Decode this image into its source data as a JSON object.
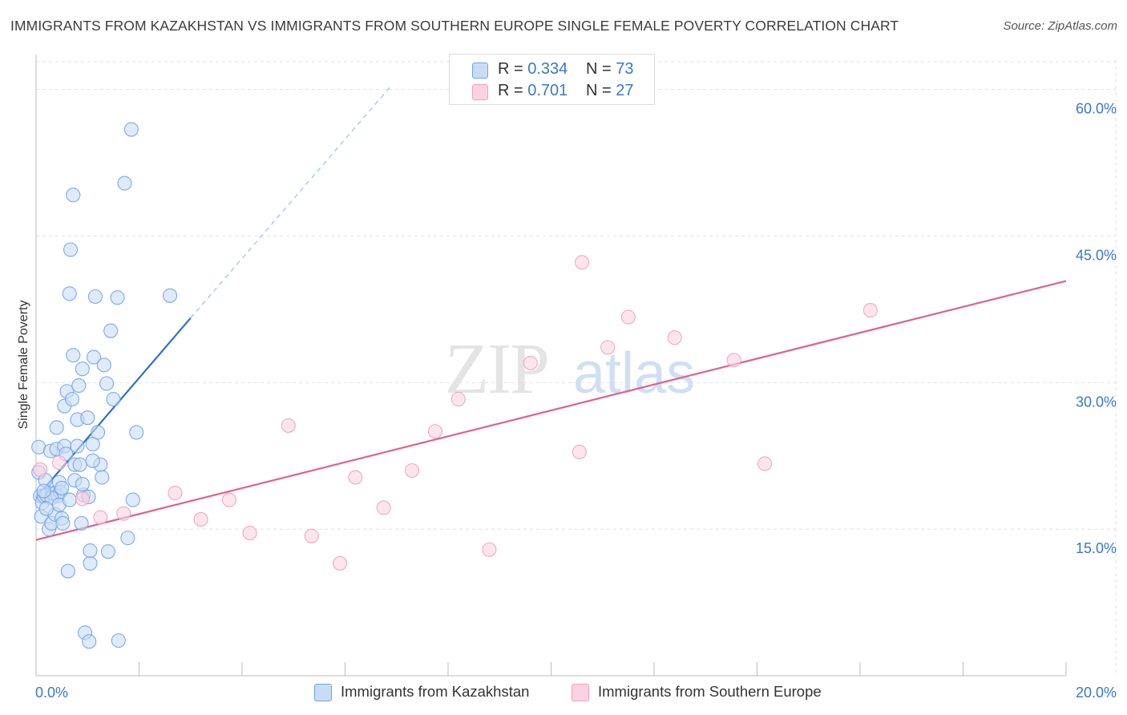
{
  "title": "IMMIGRANTS FROM KAZAKHSTAN VS IMMIGRANTS FROM SOUTHERN EUROPE SINGLE FEMALE POVERTY CORRELATION CHART",
  "source": "Source: ZipAtlas.com",
  "watermark": "ZIPatlas",
  "legend_top": [
    {
      "r_label": "R =",
      "r_value": "0.334",
      "n_label": "N =",
      "n_value": "73",
      "color": "#6fa3e6"
    },
    {
      "r_label": "R =",
      "r_value": "0.701",
      "n_label": "N =",
      "n_value": "27",
      "color": "#f0a0bc"
    }
  ],
  "legend_bottom": [
    {
      "label": "Immigrants from Kazakhstan",
      "color": "#6fa3e6"
    },
    {
      "label": "Immigrants from Southern Europe",
      "color": "#f0a0bc"
    }
  ],
  "chart_data": {
    "type": "scatter",
    "title": "IMMIGRANTS FROM KAZAKHSTAN VS IMMIGRANTS FROM SOUTHERN EUROPE SINGLE FEMALE POVERTY CORRELATION CHART",
    "xlabel": "",
    "ylabel": "Single Female Poverty",
    "xlim": [
      0,
      20
    ],
    "ylim": [
      0,
      63
    ],
    "x_tick_labels": [
      "0.0%",
      "20.0%"
    ],
    "y_ticks": [
      15,
      30,
      45,
      60
    ],
    "y_tick_labels": [
      "15.0%",
      "30.0%",
      "45.0%",
      "60.0%"
    ],
    "grid": true,
    "legend_placement": "top-center",
    "series": [
      {
        "name": "Immigrants from Kazakhstan",
        "color": "#6fa3e6",
        "line_color": "#2e6fd0",
        "trend": {
          "x0": 0.0,
          "y0": 18.2,
          "x1": 3.0,
          "y1": 36.6,
          "dash_to_x": 6.9,
          "dash_to_y": 60.4
        },
        "points": [
          [
            0.05,
            23.4
          ],
          [
            0.05,
            20.8
          ],
          [
            0.08,
            18.4
          ],
          [
            0.1,
            16.3
          ],
          [
            0.12,
            17.7
          ],
          [
            0.15,
            18.4
          ],
          [
            0.18,
            20.0
          ],
          [
            0.2,
            18.5
          ],
          [
            0.25,
            15.0
          ],
          [
            0.28,
            23.0
          ],
          [
            0.3,
            15.6
          ],
          [
            0.32,
            18.7
          ],
          [
            0.35,
            18.6
          ],
          [
            0.37,
            16.5
          ],
          [
            0.4,
            23.2
          ],
          [
            0.4,
            25.4
          ],
          [
            0.42,
            18.4
          ],
          [
            0.45,
            19.8
          ],
          [
            0.47,
            18.8
          ],
          [
            0.5,
            19.2
          ],
          [
            0.5,
            16.1
          ],
          [
            0.52,
            15.6
          ],
          [
            0.55,
            27.6
          ],
          [
            0.55,
            23.5
          ],
          [
            0.58,
            22.7
          ],
          [
            0.6,
            29.1
          ],
          [
            0.62,
            10.7
          ],
          [
            0.65,
            39.1
          ],
          [
            0.67,
            43.6
          ],
          [
            0.7,
            28.3
          ],
          [
            0.72,
            32.8
          ],
          [
            0.75,
            21.6
          ],
          [
            0.75,
            20.0
          ],
          [
            0.72,
            49.2
          ],
          [
            0.8,
            26.2
          ],
          [
            0.8,
            23.5
          ],
          [
            0.83,
            29.7
          ],
          [
            0.85,
            21.6
          ],
          [
            0.88,
            15.6
          ],
          [
            0.9,
            31.4
          ],
          [
            0.92,
            18.5
          ],
          [
            0.95,
            4.4
          ],
          [
            1.0,
            26.4
          ],
          [
            1.02,
            18.3
          ],
          [
            1.05,
            11.5
          ],
          [
            1.05,
            12.8
          ],
          [
            1.1,
            23.7
          ],
          [
            1.12,
            32.6
          ],
          [
            1.15,
            38.8
          ],
          [
            1.2,
            24.9
          ],
          [
            1.25,
            21.6
          ],
          [
            1.28,
            20.3
          ],
          [
            1.32,
            31.8
          ],
          [
            1.37,
            29.9
          ],
          [
            1.4,
            12.7
          ],
          [
            1.45,
            35.3
          ],
          [
            1.5,
            28.3
          ],
          [
            1.58,
            38.7
          ],
          [
            1.6,
            3.6
          ],
          [
            1.72,
            50.4
          ],
          [
            1.78,
            14.1
          ],
          [
            1.85,
            55.9
          ],
          [
            1.88,
            18.0
          ],
          [
            1.95,
            24.9
          ],
          [
            2.6,
            38.9
          ],
          [
            1.03,
            3.5
          ],
          [
            0.3,
            18.2
          ],
          [
            0.45,
            17.5
          ],
          [
            0.9,
            19.6
          ],
          [
            0.15,
            18.9
          ],
          [
            0.65,
            18.0
          ],
          [
            1.1,
            22.0
          ],
          [
            0.2,
            17.1
          ]
        ]
      },
      {
        "name": "Immigrants from Southern Europe",
        "color": "#f0a0bc",
        "line_color": "#e0608f",
        "trend": {
          "x0": 0.0,
          "y0": 13.9,
          "x1": 20.0,
          "y1": 40.4
        },
        "points": [
          [
            0.08,
            21.1
          ],
          [
            0.9,
            18.1
          ],
          [
            1.25,
            16.2
          ],
          [
            1.7,
            16.6
          ],
          [
            2.7,
            18.7
          ],
          [
            3.2,
            16.0
          ],
          [
            3.75,
            18.0
          ],
          [
            4.15,
            14.6
          ],
          [
            4.9,
            25.6
          ],
          [
            5.35,
            14.3
          ],
          [
            5.9,
            11.5
          ],
          [
            6.2,
            20.3
          ],
          [
            6.75,
            17.2
          ],
          [
            7.3,
            21.0
          ],
          [
            7.75,
            25.0
          ],
          [
            8.2,
            28.3
          ],
          [
            8.8,
            12.9
          ],
          [
            9.6,
            32.0
          ],
          [
            10.55,
            22.9
          ],
          [
            10.6,
            42.3
          ],
          [
            11.1,
            33.6
          ],
          [
            11.5,
            36.7
          ],
          [
            12.4,
            34.6
          ],
          [
            13.55,
            32.3
          ],
          [
            14.15,
            21.7
          ],
          [
            16.2,
            37.4
          ],
          [
            0.45,
            21.8
          ]
        ]
      }
    ]
  }
}
